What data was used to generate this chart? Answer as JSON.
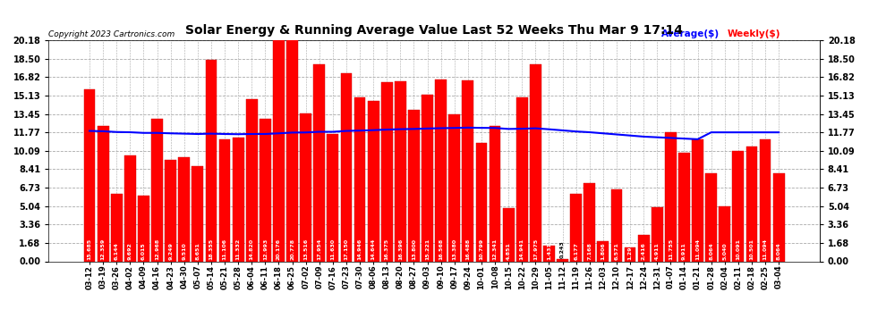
{
  "title": "Solar Energy & Running Average Value Last 52 Weeks Thu Mar 9 17:14",
  "copyright": "Copyright 2023 Cartronics.com",
  "legend_avg": "Average($)",
  "legend_weekly": "Weekly($)",
  "bar_color": "#ff0000",
  "avg_line_color": "#0000ff",
  "background_color": "#ffffff",
  "grid_color": "#aaaaaa",
  "categories": [
    "03-12",
    "03-19",
    "03-26",
    "04-02",
    "04-09",
    "04-16",
    "04-23",
    "04-30",
    "05-07",
    "05-14",
    "05-21",
    "05-28",
    "06-04",
    "06-11",
    "06-18",
    "06-25",
    "07-02",
    "07-09",
    "07-16",
    "07-23",
    "07-30",
    "08-06",
    "08-13",
    "08-20",
    "08-27",
    "09-03",
    "09-10",
    "09-17",
    "09-24",
    "10-01",
    "10-08",
    "10-15",
    "10-22",
    "10-29",
    "11-05",
    "11-12",
    "11-19",
    "11-26",
    "12-03",
    "12-10",
    "12-17",
    "12-24",
    "12-31",
    "01-07",
    "01-14",
    "01-21",
    "01-28",
    "02-04",
    "02-11",
    "02-18",
    "02-25",
    "03-04"
  ],
  "weekly_values": [
    15.685,
    12.359,
    6.144,
    9.692,
    6.015,
    12.968,
    9.249,
    9.51,
    8.651,
    18.355,
    11.106,
    11.332,
    14.82,
    12.993,
    20.176,
    20.778,
    13.516,
    17.954,
    11.63,
    17.15,
    14.946,
    14.644,
    16.375,
    16.396,
    13.8,
    15.221,
    16.568,
    13.38,
    16.488,
    10.799,
    12.341,
    4.851,
    14.941,
    17.975,
    1.431,
    0.243,
    6.177,
    7.168,
    1.806,
    6.571,
    1.293,
    2.416,
    4.911,
    11.755,
    9.911,
    11.094,
    8.064,
    5.04,
    10.091,
    10.501,
    11.094,
    8.064
  ],
  "avg_line_values": [
    11.9,
    11.87,
    11.8,
    11.78,
    11.72,
    11.72,
    11.68,
    11.65,
    11.62,
    11.65,
    11.62,
    11.6,
    11.62,
    11.62,
    11.68,
    11.75,
    11.76,
    11.82,
    11.82,
    11.9,
    11.93,
    11.97,
    12.02,
    12.06,
    12.08,
    12.12,
    12.15,
    12.17,
    12.2,
    12.18,
    12.17,
    12.08,
    12.1,
    12.14,
    12.05,
    11.95,
    11.85,
    11.78,
    11.68,
    11.58,
    11.48,
    11.38,
    11.32,
    11.26,
    11.2,
    11.14,
    11.77,
    11.77,
    11.77,
    11.77,
    11.77,
    11.77
  ],
  "yticks": [
    0.0,
    1.68,
    3.36,
    5.04,
    6.73,
    8.41,
    10.09,
    11.77,
    13.45,
    15.13,
    16.82,
    18.5,
    20.18
  ],
  "ymax": 20.18,
  "ymin": 0.0
}
